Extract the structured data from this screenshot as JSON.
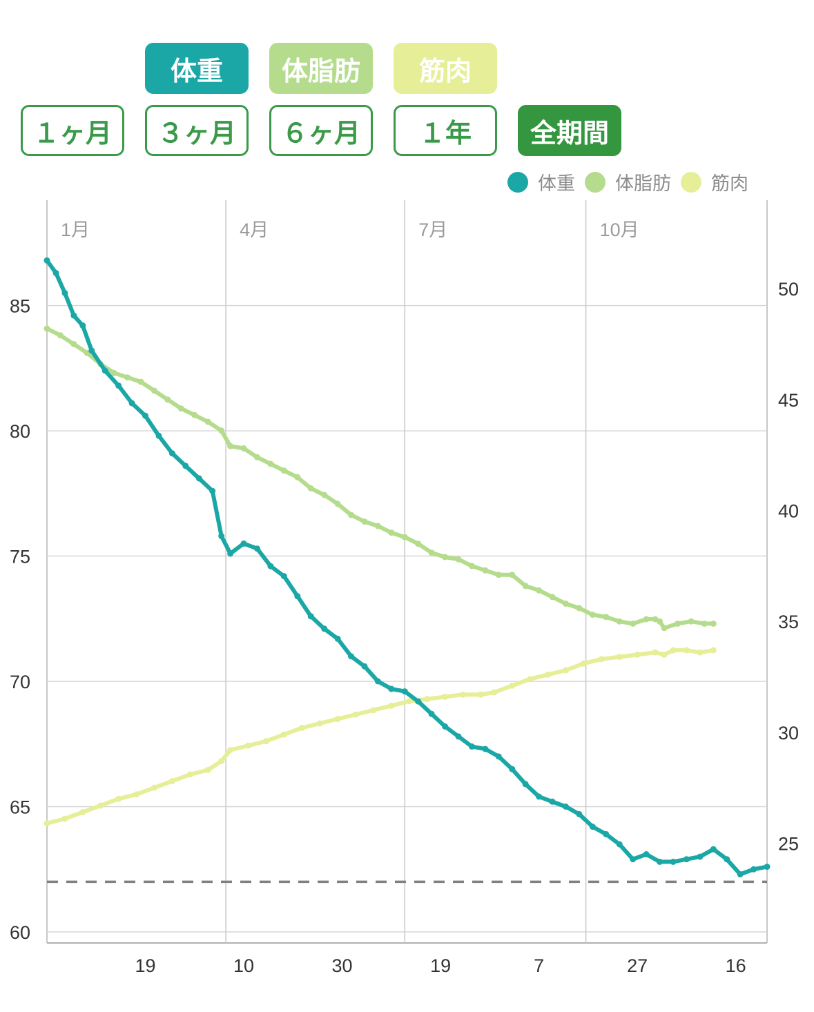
{
  "metric_buttons": [
    {
      "label": "体重",
      "color": "#1aa7a6"
    },
    {
      "label": "体脂肪",
      "color": "#b5dc8c"
    },
    {
      "label": "筋肉",
      "color": "#e6ef97"
    }
  ],
  "period_buttons": [
    {
      "label": "１ヶ月",
      "active": false
    },
    {
      "label": "３ヶ月",
      "active": false
    },
    {
      "label": "６ヶ月",
      "active": false
    },
    {
      "label": "１年",
      "active": false
    },
    {
      "label": "全期間",
      "active": true
    }
  ],
  "legend": [
    {
      "label": "体重",
      "color": "#1aa7a6"
    },
    {
      "label": "体脂肪",
      "color": "#b5dc8c"
    },
    {
      "label": "筋肉",
      "color": "#e6ef97"
    }
  ],
  "chart_data": {
    "type": "line",
    "x_range_days": [
      0,
      322
    ],
    "month_labels": [
      {
        "label": "1月",
        "day": 0
      },
      {
        "label": "4月",
        "day": 80
      },
      {
        "label": "7月",
        "day": 160
      },
      {
        "label": "10月",
        "day": 241
      }
    ],
    "x_tick_labels": [
      {
        "label": "19",
        "day": 44
      },
      {
        "label": "10",
        "day": 88
      },
      {
        "label": "30",
        "day": 132
      },
      {
        "label": "19",
        "day": 176
      },
      {
        "label": "7",
        "day": 220
      },
      {
        "label": "27",
        "day": 264
      },
      {
        "label": "16",
        "day": 308
      }
    ],
    "y_left": {
      "min": 60,
      "max": 87,
      "ticks": [
        60,
        65,
        70,
        75,
        80,
        85
      ]
    },
    "y_right": {
      "min": 21,
      "max": 51.5,
      "ticks": [
        25,
        30,
        35,
        40,
        45,
        50
      ]
    },
    "reference_line": {
      "value": 62,
      "axis": "left",
      "style": "dashed",
      "color": "#808080"
    },
    "series": [
      {
        "name": "体重",
        "axis": "left",
        "color": "#1aa7a6",
        "points": [
          [
            0,
            86.8
          ],
          [
            4,
            86.3
          ],
          [
            8,
            85.5
          ],
          [
            12,
            84.6
          ],
          [
            16,
            84.2
          ],
          [
            20,
            83.2
          ],
          [
            26,
            82.4
          ],
          [
            32,
            81.8
          ],
          [
            38,
            81.1
          ],
          [
            44,
            80.6
          ],
          [
            50,
            79.8
          ],
          [
            56,
            79.1
          ],
          [
            62,
            78.6
          ],
          [
            68,
            78.1
          ],
          [
            74,
            77.6
          ],
          [
            78,
            75.8
          ],
          [
            82,
            75.1
          ],
          [
            88,
            75.5
          ],
          [
            94,
            75.3
          ],
          [
            100,
            74.6
          ],
          [
            106,
            74.2
          ],
          [
            112,
            73.4
          ],
          [
            118,
            72.6
          ],
          [
            124,
            72.1
          ],
          [
            130,
            71.7
          ],
          [
            136,
            71.0
          ],
          [
            142,
            70.6
          ],
          [
            148,
            70.0
          ],
          [
            154,
            69.7
          ],
          [
            160,
            69.6
          ],
          [
            166,
            69.2
          ],
          [
            172,
            68.7
          ],
          [
            178,
            68.2
          ],
          [
            184,
            67.8
          ],
          [
            190,
            67.4
          ],
          [
            196,
            67.3
          ],
          [
            202,
            67.0
          ],
          [
            208,
            66.5
          ],
          [
            214,
            65.9
          ],
          [
            220,
            65.4
          ],
          [
            226,
            65.2
          ],
          [
            232,
            65.0
          ],
          [
            238,
            64.7
          ],
          [
            244,
            64.2
          ],
          [
            250,
            63.9
          ],
          [
            256,
            63.5
          ],
          [
            262,
            62.9
          ],
          [
            268,
            63.1
          ],
          [
            274,
            62.8
          ],
          [
            280,
            62.8
          ],
          [
            286,
            62.9
          ],
          [
            292,
            63.0
          ],
          [
            298,
            63.3
          ],
          [
            304,
            62.9
          ],
          [
            310,
            62.3
          ],
          [
            316,
            62.5
          ],
          [
            322,
            62.6
          ]
        ]
      },
      {
        "name": "体脂肪",
        "axis": "right",
        "color": "#b5dc8c",
        "points": [
          [
            0,
            48.2
          ],
          [
            6,
            47.9
          ],
          [
            12,
            47.5
          ],
          [
            18,
            47.1
          ],
          [
            24,
            46.6
          ],
          [
            30,
            46.2
          ],
          [
            36,
            46.0
          ],
          [
            42,
            45.8
          ],
          [
            48,
            45.4
          ],
          [
            54,
            45.0
          ],
          [
            60,
            44.6
          ],
          [
            66,
            44.3
          ],
          [
            72,
            44.0
          ],
          [
            78,
            43.6
          ],
          [
            82,
            42.9
          ],
          [
            88,
            42.8
          ],
          [
            94,
            42.4
          ],
          [
            100,
            42.1
          ],
          [
            106,
            41.8
          ],
          [
            112,
            41.5
          ],
          [
            118,
            41.0
          ],
          [
            124,
            40.7
          ],
          [
            130,
            40.3
          ],
          [
            136,
            39.8
          ],
          [
            142,
            39.5
          ],
          [
            148,
            39.3
          ],
          [
            154,
            39.0
          ],
          [
            160,
            38.8
          ],
          [
            166,
            38.5
          ],
          [
            172,
            38.1
          ],
          [
            178,
            37.9
          ],
          [
            184,
            37.8
          ],
          [
            190,
            37.5
          ],
          [
            196,
            37.3
          ],
          [
            202,
            37.1
          ],
          [
            208,
            37.1
          ],
          [
            214,
            36.6
          ],
          [
            220,
            36.4
          ],
          [
            226,
            36.1
          ],
          [
            232,
            35.8
          ],
          [
            238,
            35.6
          ],
          [
            244,
            35.3
          ],
          [
            250,
            35.2
          ],
          [
            256,
            35.0
          ],
          [
            262,
            34.9
          ],
          [
            268,
            35.1
          ],
          [
            272,
            35.1
          ],
          [
            274,
            35.0
          ],
          [
            276,
            34.7
          ],
          [
            282,
            34.9
          ],
          [
            288,
            35.0
          ],
          [
            294,
            34.9
          ],
          [
            298,
            34.9
          ]
        ]
      },
      {
        "name": "筋肉",
        "axis": "right",
        "color": "#e6ef97",
        "points": [
          [
            0,
            25.9
          ],
          [
            8,
            26.1
          ],
          [
            16,
            26.4
          ],
          [
            24,
            26.7
          ],
          [
            32,
            27.0
          ],
          [
            40,
            27.2
          ],
          [
            48,
            27.5
          ],
          [
            56,
            27.8
          ],
          [
            64,
            28.1
          ],
          [
            72,
            28.3
          ],
          [
            78,
            28.7
          ],
          [
            82,
            29.2
          ],
          [
            90,
            29.4
          ],
          [
            98,
            29.6
          ],
          [
            106,
            29.9
          ],
          [
            114,
            30.2
          ],
          [
            122,
            30.4
          ],
          [
            130,
            30.6
          ],
          [
            138,
            30.8
          ],
          [
            146,
            31.0
          ],
          [
            154,
            31.2
          ],
          [
            162,
            31.4
          ],
          [
            170,
            31.5
          ],
          [
            178,
            31.6
          ],
          [
            186,
            31.7
          ],
          [
            194,
            31.7
          ],
          [
            200,
            31.8
          ],
          [
            208,
            32.1
          ],
          [
            216,
            32.4
          ],
          [
            224,
            32.6
          ],
          [
            232,
            32.8
          ],
          [
            240,
            33.1
          ],
          [
            248,
            33.3
          ],
          [
            256,
            33.4
          ],
          [
            264,
            33.5
          ],
          [
            272,
            33.6
          ],
          [
            276,
            33.5
          ],
          [
            280,
            33.7
          ],
          [
            286,
            33.7
          ],
          [
            292,
            33.6
          ],
          [
            298,
            33.7
          ]
        ]
      }
    ]
  }
}
